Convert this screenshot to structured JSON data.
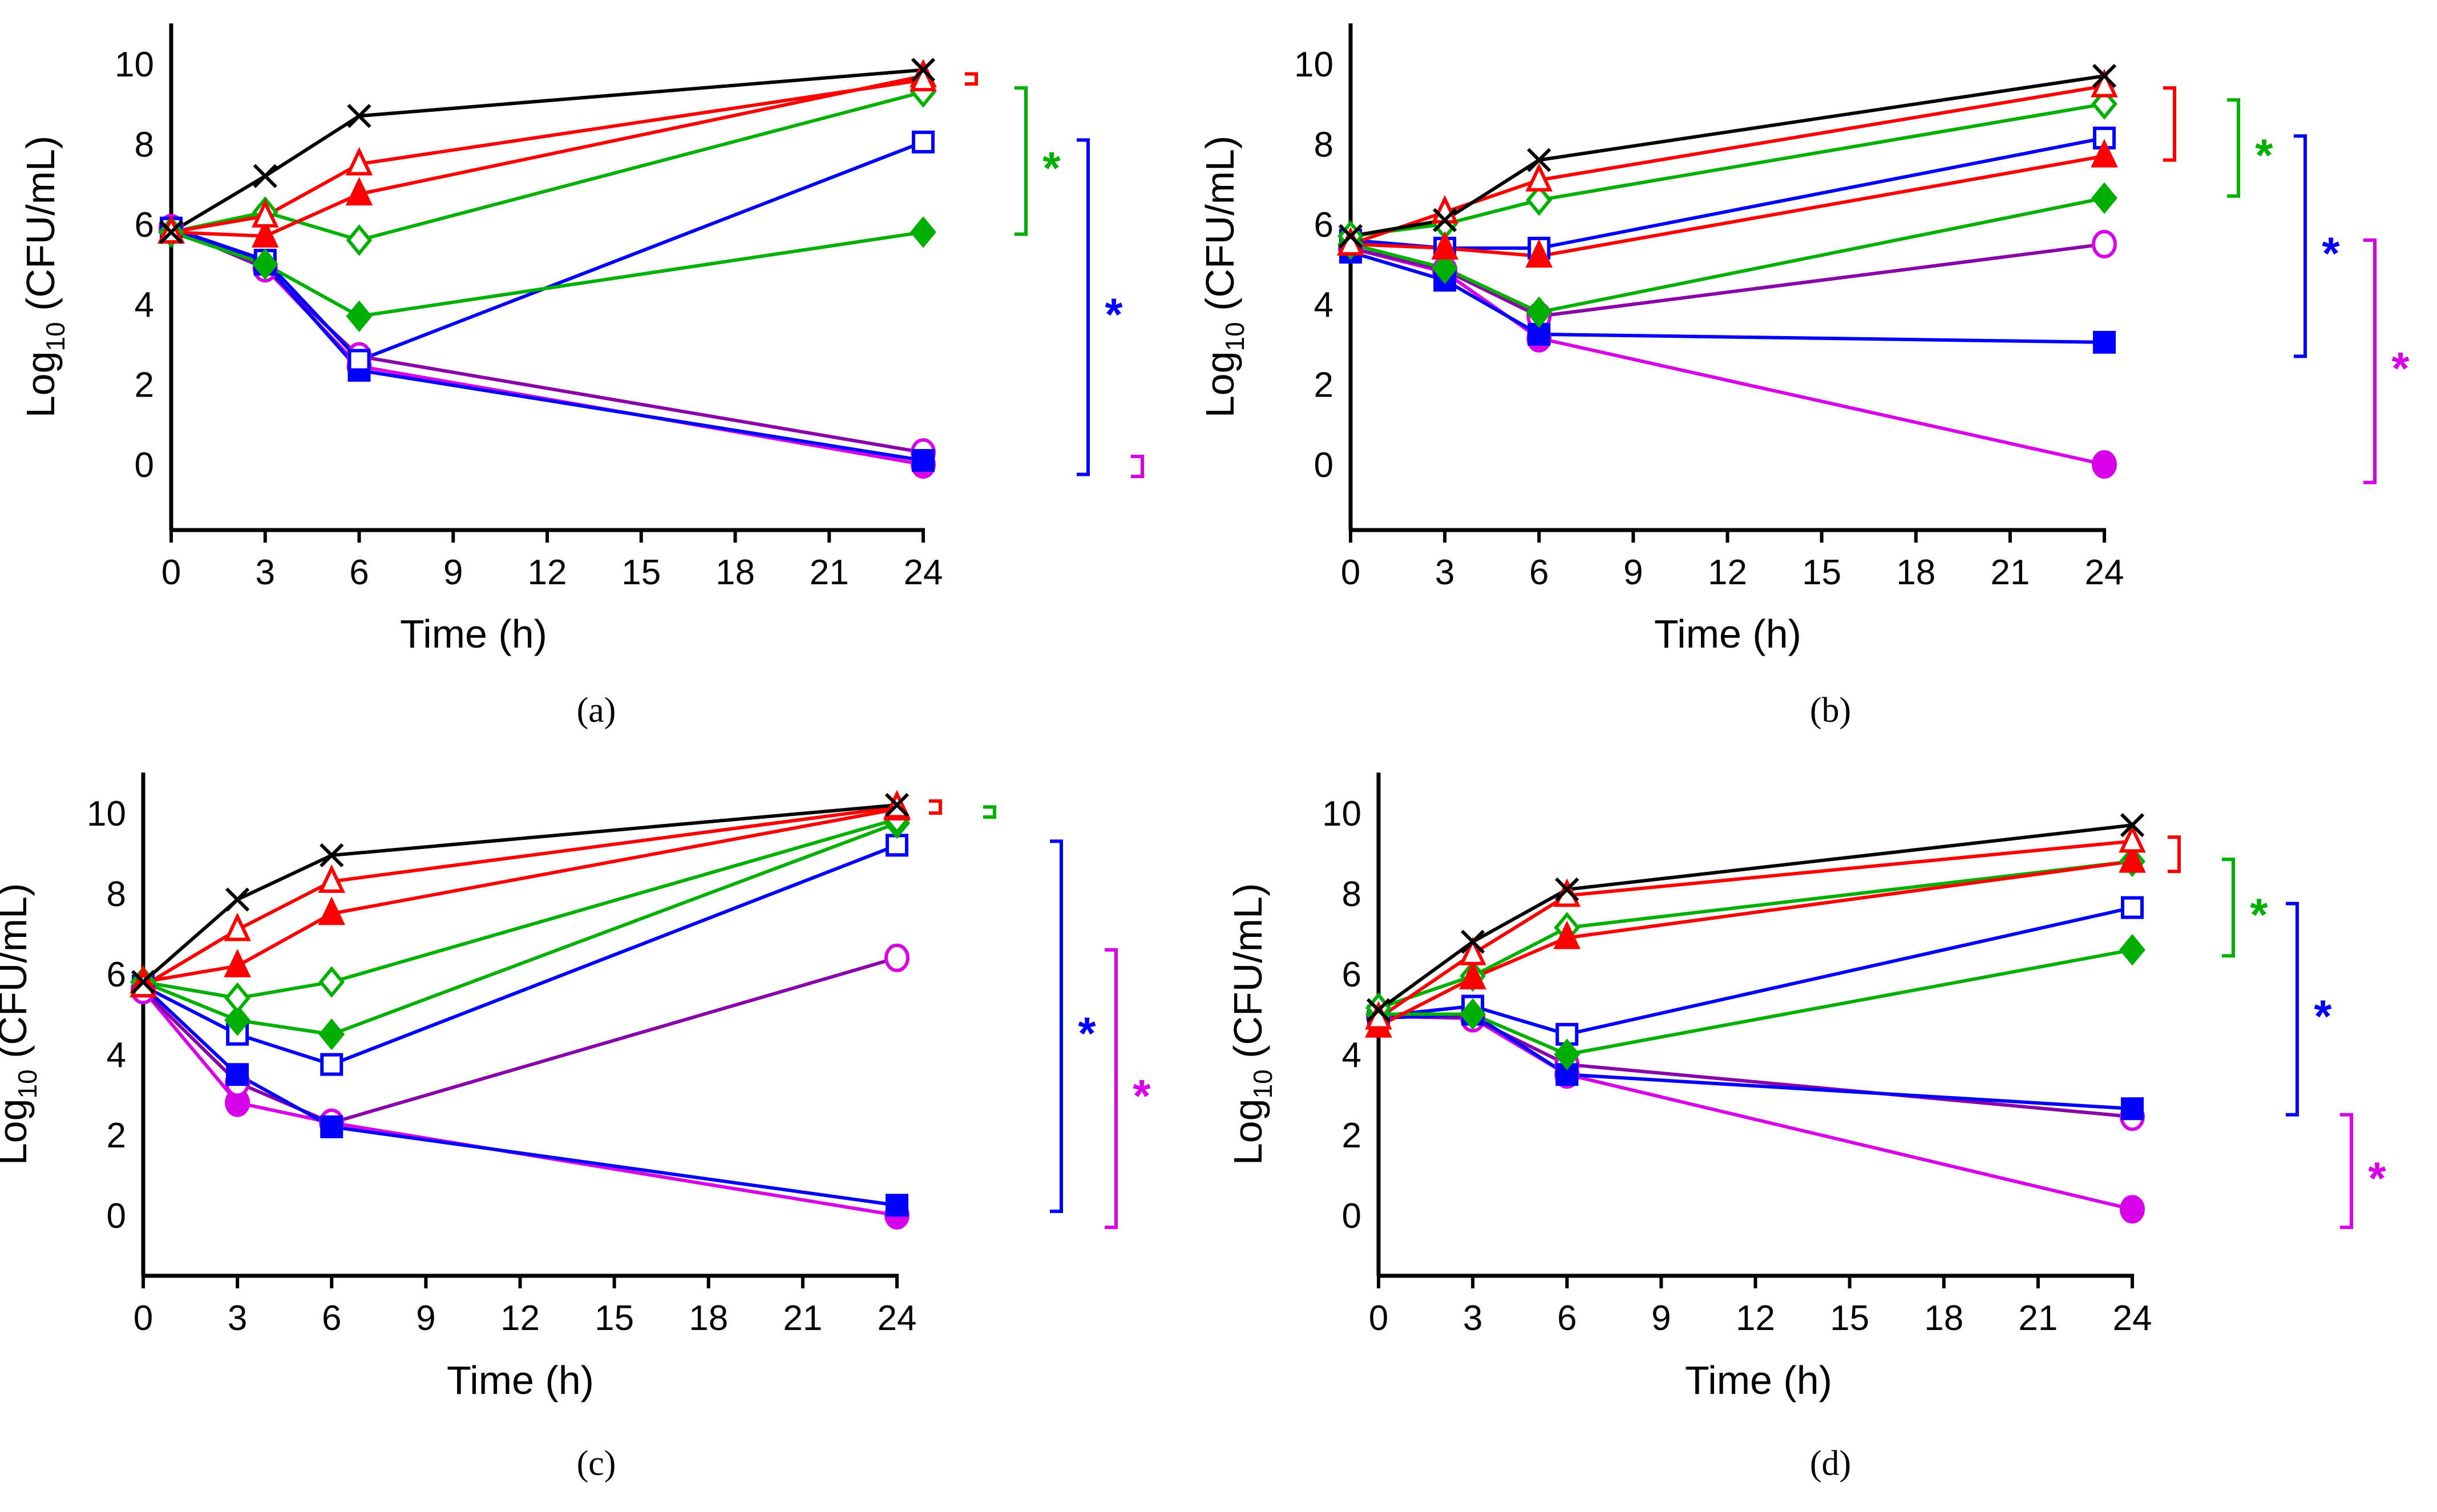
{
  "colors": {
    "control": "#000000",
    "red": "#FF0000",
    "green": "#00B000",
    "blue": "#0000FF",
    "magenta": "#D800E8",
    "purple": "#8A00A8"
  },
  "series_style": [
    {
      "key": "control",
      "marker": "x",
      "color": "#000000",
      "line": "#000000",
      "fill": false
    },
    {
      "key": "red_open",
      "marker": "triangle",
      "color": "#FF0000",
      "line": "#FF0000",
      "fill": false
    },
    {
      "key": "red_filled",
      "marker": "triangle",
      "color": "#FF0000",
      "line": "#FF0000",
      "fill": true
    },
    {
      "key": "green_open",
      "marker": "diamond",
      "color": "#00B000",
      "line": "#00B000",
      "fill": false
    },
    {
      "key": "green_filled",
      "marker": "diamond",
      "color": "#00B000",
      "line": "#00B000",
      "fill": true
    },
    {
      "key": "blue_open",
      "marker": "square",
      "color": "#0000FF",
      "line": "#0000FF",
      "fill": false
    },
    {
      "key": "blue_filled",
      "marker": "square",
      "color": "#0000FF",
      "line": "#0000FF",
      "fill": true
    },
    {
      "key": "magenta_open",
      "marker": "circle",
      "color": "#D800E8",
      "line": "#8A00A8",
      "fill": false
    },
    {
      "key": "magenta_filled",
      "marker": "circle",
      "color": "#D800E8",
      "line": "#D800E8",
      "fill": true
    }
  ],
  "chart_data": [
    {
      "type": "line",
      "panel_label": "(a)",
      "xlabel": "Time (h)",
      "ylabel_main": "Log",
      "ylabel_sub": "10",
      "ylabel_rest": " (CFU/mL)",
      "xlim": [
        0,
        24
      ],
      "ylim": [
        -1.5,
        11
      ],
      "xticks": [
        0,
        3,
        6,
        9,
        12,
        15,
        18,
        21,
        24
      ],
      "yticks": [
        0,
        2,
        4,
        6,
        8,
        10
      ],
      "x": [
        0,
        3,
        6,
        24
      ],
      "series": [
        {
          "key": "control",
          "values": [
            5.8,
            7.2,
            8.7,
            9.85
          ]
        },
        {
          "key": "red_open",
          "values": [
            5.8,
            6.2,
            7.5,
            9.6
          ]
        },
        {
          "key": "red_filled",
          "values": [
            5.8,
            5.7,
            6.75,
            9.7
          ]
        },
        {
          "key": "green_open",
          "values": [
            5.8,
            6.3,
            5.6,
            9.3
          ]
        },
        {
          "key": "green_filled",
          "values": [
            5.8,
            5.0,
            3.7,
            5.8
          ]
        },
        {
          "key": "blue_open",
          "values": [
            5.9,
            5.1,
            2.6,
            8.05
          ]
        },
        {
          "key": "blue_filled",
          "values": [
            5.9,
            5.0,
            2.35,
            0.1
          ]
        },
        {
          "key": "magenta_open",
          "values": [
            5.9,
            4.9,
            2.7,
            0.3
          ]
        },
        {
          "key": "magenta_filled",
          "values": [
            5.9,
            4.9,
            2.45,
            0.0
          ]
        }
      ],
      "significance": [
        {
          "color": "red",
          "range": [
            9.5,
            9.75
          ],
          "label": ""
        },
        {
          "color": "green",
          "range": [
            5.75,
            9.4
          ],
          "label": "*"
        },
        {
          "color": "blue",
          "range": [
            -0.25,
            8.1
          ],
          "label": "*"
        },
        {
          "color": "magenta",
          "range": [
            -0.3,
            0.2
          ],
          "label": ""
        }
      ]
    },
    {
      "type": "line",
      "panel_label": "(b)",
      "xlabel": "Time (h)",
      "ylabel_main": "Log",
      "ylabel_sub": "10",
      "ylabel_rest": " (CFU/mL)",
      "xlim": [
        0,
        24
      ],
      "ylim": [
        -1.5,
        11
      ],
      "xticks": [
        0,
        3,
        6,
        9,
        12,
        15,
        18,
        21,
        24
      ],
      "yticks": [
        0,
        2,
        4,
        6,
        8,
        10
      ],
      "x": [
        0,
        3,
        6,
        24
      ],
      "series": [
        {
          "key": "control",
          "values": [
            5.7,
            6.1,
            7.6,
            9.7
          ]
        },
        {
          "key": "red_open",
          "values": [
            5.5,
            6.3,
            7.1,
            9.45
          ]
        },
        {
          "key": "red_filled",
          "values": [
            5.5,
            5.4,
            5.2,
            7.7
          ]
        },
        {
          "key": "green_open",
          "values": [
            5.7,
            6.0,
            6.6,
            9.0
          ]
        },
        {
          "key": "green_filled",
          "values": [
            5.5,
            4.9,
            3.8,
            6.65
          ]
        },
        {
          "key": "blue_open",
          "values": [
            5.6,
            5.4,
            5.4,
            8.15
          ]
        },
        {
          "key": "blue_filled",
          "values": [
            5.3,
            4.6,
            3.25,
            3.05
          ]
        },
        {
          "key": "magenta_open",
          "values": [
            5.4,
            4.85,
            3.7,
            5.5
          ]
        },
        {
          "key": "magenta_filled",
          "values": [
            5.4,
            4.8,
            3.15,
            0.0
          ]
        }
      ],
      "significance": [
        {
          "color": "red",
          "range": [
            7.6,
            9.4
          ],
          "label": ""
        },
        {
          "color": "green",
          "range": [
            6.7,
            9.1
          ],
          "label": "*"
        },
        {
          "color": "blue",
          "range": [
            2.7,
            8.2
          ],
          "label": "*"
        },
        {
          "color": "magenta",
          "range": [
            -0.45,
            5.6
          ],
          "label": "*"
        }
      ]
    },
    {
      "type": "line",
      "panel_label": "(c)",
      "xlabel": "Time (h)",
      "ylabel_main": "Log",
      "ylabel_sub": "10",
      "ylabel_rest": " (CFU/mL)",
      "xlim": [
        0,
        24
      ],
      "ylim": [
        -1.5,
        11
      ],
      "xticks": [
        0,
        3,
        6,
        9,
        12,
        15,
        18,
        21,
        24
      ],
      "yticks": [
        0,
        2,
        4,
        6,
        8,
        10
      ],
      "x": [
        0,
        3,
        6,
        24
      ],
      "series": [
        {
          "key": "control",
          "values": [
            5.8,
            7.85,
            8.95,
            10.2
          ]
        },
        {
          "key": "red_open",
          "values": [
            5.7,
            7.1,
            8.3,
            10.15
          ]
        },
        {
          "key": "red_filled",
          "values": [
            5.8,
            6.2,
            7.5,
            10.1
          ]
        },
        {
          "key": "green_open",
          "values": [
            5.8,
            5.4,
            5.8,
            9.85
          ]
        },
        {
          "key": "green_filled",
          "values": [
            5.8,
            4.85,
            4.5,
            9.75
          ]
        },
        {
          "key": "blue_open",
          "values": [
            5.7,
            4.5,
            3.75,
            9.2
          ]
        },
        {
          "key": "blue_filled",
          "values": [
            5.7,
            3.5,
            2.2,
            0.25
          ]
        },
        {
          "key": "magenta_open",
          "values": [
            5.6,
            3.3,
            2.3,
            6.4
          ]
        },
        {
          "key": "magenta_filled",
          "values": [
            5.6,
            2.8,
            2.3,
            0.0
          ]
        }
      ],
      "significance": [
        {
          "color": "red",
          "range": [
            10.0,
            10.3
          ],
          "label": ""
        },
        {
          "color": "green",
          "range": [
            9.9,
            10.15
          ],
          "label": ""
        },
        {
          "color": "blue",
          "range": [
            0.1,
            9.3
          ],
          "label": "*"
        },
        {
          "color": "magenta",
          "range": [
            -0.3,
            6.6
          ],
          "label": "*"
        }
      ]
    },
    {
      "type": "line",
      "panel_label": "(d)",
      "xlabel": "Time (h)",
      "ylabel_main": "Log",
      "ylabel_sub": "10",
      "ylabel_rest": " (CFU/mL)",
      "xlim": [
        0,
        24
      ],
      "ylim": [
        -1.5,
        11
      ],
      "xticks": [
        0,
        3,
        6,
        9,
        12,
        15,
        18,
        21,
        24
      ],
      "yticks": [
        0,
        2,
        4,
        6,
        8,
        10
      ],
      "x": [
        0,
        3,
        6,
        24
      ],
      "series": [
        {
          "key": "control",
          "values": [
            5.1,
            6.8,
            8.1,
            9.7
          ]
        },
        {
          "key": "red_open",
          "values": [
            4.9,
            6.5,
            7.95,
            9.3
          ]
        },
        {
          "key": "red_filled",
          "values": [
            4.7,
            5.9,
            6.9,
            8.8
          ]
        },
        {
          "key": "green_open",
          "values": [
            5.15,
            5.95,
            7.15,
            8.8
          ]
        },
        {
          "key": "green_filled",
          "values": [
            5.0,
            5.0,
            4.0,
            6.6
          ]
        },
        {
          "key": "blue_open",
          "values": [
            4.95,
            5.2,
            4.5,
            7.65
          ]
        },
        {
          "key": "blue_filled",
          "values": [
            4.9,
            5.0,
            3.5,
            2.65
          ]
        },
        {
          "key": "magenta_open",
          "values": [
            4.95,
            4.9,
            3.75,
            2.45
          ]
        },
        {
          "key": "magenta_filled",
          "values": [
            4.95,
            4.9,
            3.5,
            0.15
          ]
        }
      ],
      "significance": [
        {
          "color": "red",
          "range": [
            8.55,
            9.4
          ],
          "label": ""
        },
        {
          "color": "green",
          "range": [
            6.45,
            8.85
          ],
          "label": "*"
        },
        {
          "color": "blue",
          "range": [
            2.5,
            7.75
          ],
          "label": "*"
        },
        {
          "color": "magenta",
          "range": [
            -0.3,
            2.5
          ],
          "label": "*"
        }
      ]
    }
  ]
}
